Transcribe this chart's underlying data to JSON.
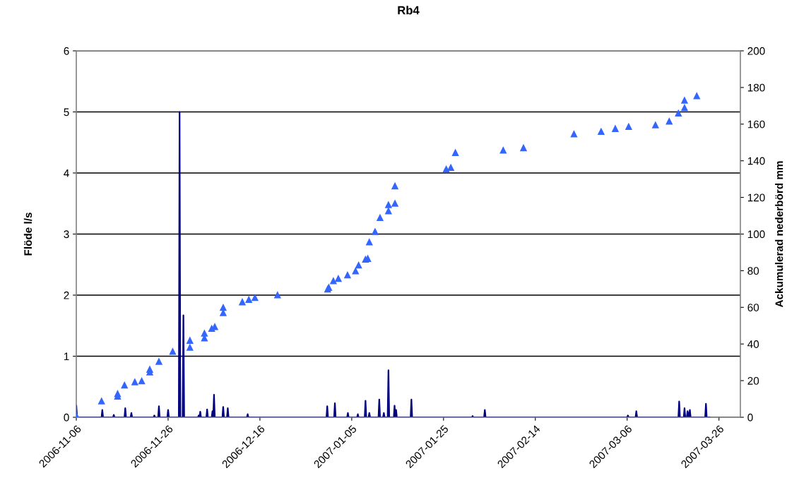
{
  "chart_data": {
    "type": "line",
    "title": "Rb4",
    "ylabel": "Flöde l/s",
    "y2label": "Ackumulerad nederbörd mm",
    "xlim": [
      "2006-11-06",
      "2007-03-30T16:00"
    ],
    "xticks": [
      "2006-11-06",
      "2006-11-26",
      "2006-12-16",
      "2007-01-05",
      "2007-01-25",
      "2007-02-14",
      "2007-03-06",
      "2007-03-26"
    ],
    "ylim": [
      0,
      6
    ],
    "yticks": [
      0,
      1,
      2,
      3,
      4,
      5,
      6
    ],
    "y2lim": [
      0,
      200
    ],
    "y2ticks": [
      0,
      20,
      40,
      60,
      80,
      100,
      120,
      140,
      160,
      180,
      200
    ],
    "grid": "y",
    "series": [
      {
        "color": "#000080",
        "line_style": "solid",
        "x": [
          "2006-11-06T00:00",
          "2006-11-06T04:00",
          "2006-11-11T12:00",
          "2006-11-11T16:00",
          "2006-11-11T20:00",
          "2006-11-14T00:00",
          "2006-11-14T04:00",
          "2006-11-14T08:00",
          "2006-11-16T12:00",
          "2006-11-16T16:00",
          "2006-11-16T20:00",
          "2006-11-17T20:00",
          "2006-11-18T00:00",
          "2006-11-18T04:00",
          "2006-11-22T20:00",
          "2006-11-23T00:00",
          "2006-11-23T04:00",
          "2006-11-23T20:00",
          "2006-11-24T00:00",
          "2006-11-24T04:00",
          "2006-11-25T20:00",
          "2006-11-26T00:00",
          "2006-11-26T04:00",
          "2006-11-28T08:00",
          "2006-11-28T12:00",
          "2006-11-28T16:00",
          "2006-11-29T04:00",
          "2006-11-29T08:00",
          "2006-11-29T12:00",
          "2006-12-02T12:00",
          "2006-12-02T16:00",
          "2006-12-02T20:00",
          "2006-12-03T00:00",
          "2006-12-03T04:00",
          "2006-12-04T08:00",
          "2006-12-04T12:00",
          "2006-12-04T16:00",
          "2006-12-05T12:00",
          "2006-12-05T16:00",
          "2006-12-05T20:00",
          "2006-12-06T00:00",
          "2006-12-06T04:00",
          "2006-12-07T20:00",
          "2006-12-08T00:00",
          "2006-12-08T04:00",
          "2006-12-08T20:00",
          "2006-12-09T00:00",
          "2006-12-09T04:00",
          "2006-12-13T04:00",
          "2006-12-13T08:00",
          "2006-12-13T12:00",
          "2006-12-30T12:00",
          "2006-12-30T16:00",
          "2006-12-30T20:00",
          "2007-01-01T04:00",
          "2007-01-01T08:00",
          "2007-01-01T12:00",
          "2007-01-04T00:00",
          "2007-01-04T04:00",
          "2007-01-04T08:00",
          "2007-01-06T04:00",
          "2007-01-06T08:00",
          "2007-01-06T12:00",
          "2007-01-07T20:00",
          "2007-01-08T00:00",
          "2007-01-08T04:00",
          "2007-01-08T16:00",
          "2007-01-08T20:00",
          "2007-01-09T00:00",
          "2007-01-10T20:00",
          "2007-01-11T00:00",
          "2007-01-11T04:00",
          "2007-01-11T20:00",
          "2007-01-12T00:00",
          "2007-01-12T04:00",
          "2007-01-12T20:00",
          "2007-01-13T00:00",
          "2007-01-13T04:00",
          "2007-01-14T04:00",
          "2007-01-14T08:00",
          "2007-01-14T12:00",
          "2007-01-14T16:00",
          "2007-01-14T20:00",
          "2007-01-17T20:00",
          "2007-01-18T00:00",
          "2007-01-18T04:00",
          "2007-01-31T04:00",
          "2007-01-31T08:00",
          "2007-01-31T12:00",
          "2007-02-02T20:00",
          "2007-02-03T00:00",
          "2007-02-03T04:00",
          "2007-03-06T00:00",
          "2007-03-06T04:00",
          "2007-03-06T08:00",
          "2007-03-07T20:00",
          "2007-03-08T00:00",
          "2007-03-08T04:00",
          "2007-03-17T04:00",
          "2007-03-17T08:00",
          "2007-03-17T12:00",
          "2007-03-18T08:00",
          "2007-03-18T12:00",
          "2007-03-18T16:00",
          "2007-03-19T00:00",
          "2007-03-19T04:00",
          "2007-03-19T10:00",
          "2007-03-19T16:00",
          "2007-03-19T20:00",
          "2007-03-23T00:00",
          "2007-03-23T04:00",
          "2007-03-23T08:00",
          "2007-03-24T00:00"
        ],
        "values": [
          0.19,
          0,
          0,
          0.12,
          0,
          0,
          0.04,
          0,
          0,
          0.15,
          0,
          0,
          0.07,
          0,
          0,
          0.03,
          0,
          0,
          0.18,
          0,
          0,
          0.12,
          0,
          0,
          5.0,
          0,
          0,
          1.67,
          0,
          0,
          0.03,
          0,
          0.09,
          0,
          0,
          0.13,
          0,
          0,
          0.1,
          0,
          0.37,
          0,
          0,
          0.17,
          0,
          0,
          0.15,
          0,
          0,
          0.05,
          0,
          0,
          0.18,
          0,
          0,
          0.23,
          0,
          0,
          0.07,
          0,
          0,
          0.05,
          0,
          0,
          0.27,
          0,
          0,
          0.07,
          0,
          0,
          0.29,
          0,
          0,
          0.07,
          0,
          0,
          0.77,
          0,
          0,
          0.19,
          0,
          0.12,
          0,
          0,
          0.29,
          0,
          0,
          0.02,
          0,
          0,
          0.12,
          0,
          0,
          0.03,
          0,
          0,
          0.1,
          0,
          0,
          0.26,
          0,
          0,
          0.15,
          0,
          0,
          0.1,
          0,
          0.12,
          0,
          0,
          0.22,
          0,
          0
        ]
      },
      {
        "type": "scatter",
        "axis": "y2",
        "color": "#3366ff",
        "marker": "triangle",
        "x": [
          "2006-11-06",
          "2006-11-11T12:00",
          "2006-11-15",
          "2006-11-15",
          "2006-11-16T12:00",
          "2006-11-18T18:00",
          "2006-11-20T06:00",
          "2006-11-22",
          "2006-11-22",
          "2006-11-24",
          "2006-11-27",
          "2006-11-30T18:00",
          "2006-11-30T18:00",
          "2006-12-03T22:00",
          "2006-12-03T22:00",
          "2006-12-05T12:00",
          "2006-12-06T04:00",
          "2006-12-08",
          "2006-12-08",
          "2006-12-12T04:00",
          "2006-12-13T14:00",
          "2006-12-14T22:00",
          "2006-12-19T20:00",
          "2006-12-30T18:00",
          "2006-12-31",
          "2007-01-01",
          "2007-01-02T02:00",
          "2007-01-04T02:00",
          "2007-01-05T20:00",
          "2007-01-06T12:00",
          "2007-01-08",
          "2007-01-08T12:00",
          "2007-01-08T20:00",
          "2007-01-10T02:00",
          "2007-01-11T04:00",
          "2007-01-13",
          "2007-01-13",
          "2007-01-14T10:00",
          "2007-01-14T10:00",
          "2007-01-25T14:00",
          "2007-01-26T14:00",
          "2007-01-27T14:00",
          "2007-02-07",
          "2007-02-11T10:00",
          "2007-02-22T10:00",
          "2007-02-28T08:00",
          "2007-03-03T10:00",
          "2007-03-06T08:00",
          "2007-03-12T04:00",
          "2007-03-15T04:00",
          "2007-03-17T04:00",
          "2007-03-18T12:00",
          "2007-03-18T12:00",
          "2007-03-21T04:00"
        ],
        "values": [
          1,
          9,
          11.6,
          13,
          17.7,
          19.4,
          20,
          24.8,
          26.3,
          30.6,
          36.1,
          38.3,
          42.1,
          43.4,
          46,
          48.6,
          49.6,
          57.2,
          60.1,
          63.1,
          64.4,
          65.5,
          66.9,
          70.1,
          71,
          74.6,
          75.9,
          77.8,
          80,
          83.2,
          86.4,
          86.8,
          95.8,
          101.5,
          109.1,
          112.8,
          116.1,
          116.9,
          126.4,
          135.6,
          136.5,
          144.6,
          145.9,
          147.2,
          154.8,
          156.1,
          157.7,
          158.8,
          159.7,
          161.7,
          166.1,
          169.1,
          173.2,
          175.6
        ]
      }
    ]
  }
}
